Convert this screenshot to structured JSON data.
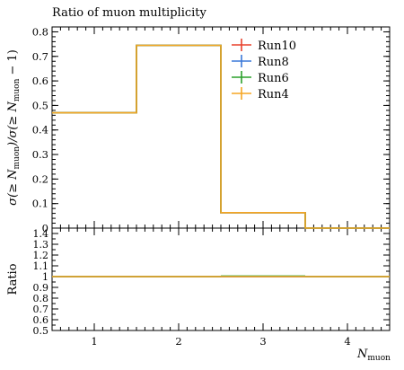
{
  "chart_data": {
    "type": "step",
    "title": "Ratio of muon multiplicity",
    "ylabel": "σ(≥ N_muon)/σ(≥ N_muon − 1)",
    "ylabel_parts": {
      "open": "σ(≥ ",
      "N": "N",
      "sub1": "muon",
      "mid": ")/σ(≥ ",
      "N2": "N",
      "sub2": "muon",
      "close": " − 1)"
    },
    "xlabel": "N_muon",
    "xlabel_parts": {
      "N": "N",
      "sub": "muon"
    },
    "ratio_ylabel": "Ratio",
    "xlim": [
      0.5,
      4.5
    ],
    "ylim": [
      0,
      0.82
    ],
    "ratio_ylim": [
      0.5,
      1.45
    ],
    "bins": [
      [
        0.5,
        1.5
      ],
      [
        1.5,
        2.5
      ],
      [
        2.5,
        3.5
      ],
      [
        3.5,
        4.5
      ]
    ],
    "x_ticks": [
      1,
      2,
      3,
      4
    ],
    "y_ticks": [
      0.1,
      0.2,
      0.3,
      0.4,
      0.5,
      0.6,
      0.7,
      0.8
    ],
    "y_tick_labels": [
      "0.1",
      "0.2",
      "0.3",
      "0.4",
      "0.5",
      "0.6",
      "0.7",
      "0.8"
    ],
    "y_zero_label": "0",
    "ratio_ticks": [
      0.5,
      0.6,
      0.7,
      0.8,
      0.9,
      1.0,
      1.1,
      1.2,
      1.3,
      1.4
    ],
    "ratio_tick_labels": [
      "0.5",
      "0.6",
      "0.7",
      "0.8",
      "0.9",
      "1",
      "1.1",
      "1.2",
      "1.3",
      "1.4"
    ],
    "series": [
      {
        "name": "Run10",
        "color": "#e8412c",
        "values": [
          0.47,
          0.745,
          0.063,
          0.0
        ],
        "ratio": [
          1.0,
          1.0,
          1.0,
          1.0
        ]
      },
      {
        "name": "Run8",
        "color": "#3a78d8",
        "values": [
          0.47,
          0.745,
          0.063,
          0.0
        ],
        "ratio": [
          1.0,
          1.0,
          1.0,
          1.0
        ]
      },
      {
        "name": "Run6",
        "color": "#2ca02c",
        "values": [
          0.47,
          0.745,
          0.063,
          0.0
        ],
        "ratio": [
          1.0,
          1.0,
          1.005,
          1.0
        ]
      },
      {
        "name": "Run4",
        "color": "#f5a623",
        "values": [
          0.47,
          0.745,
          0.063,
          0.0
        ],
        "ratio": [
          1.0,
          1.0,
          1.0,
          1.0
        ]
      }
    ],
    "legend_labels": [
      "Run10",
      "Run8",
      "Run6",
      "Run4"
    ],
    "legend_placement": "top-right",
    "grid": false
  }
}
